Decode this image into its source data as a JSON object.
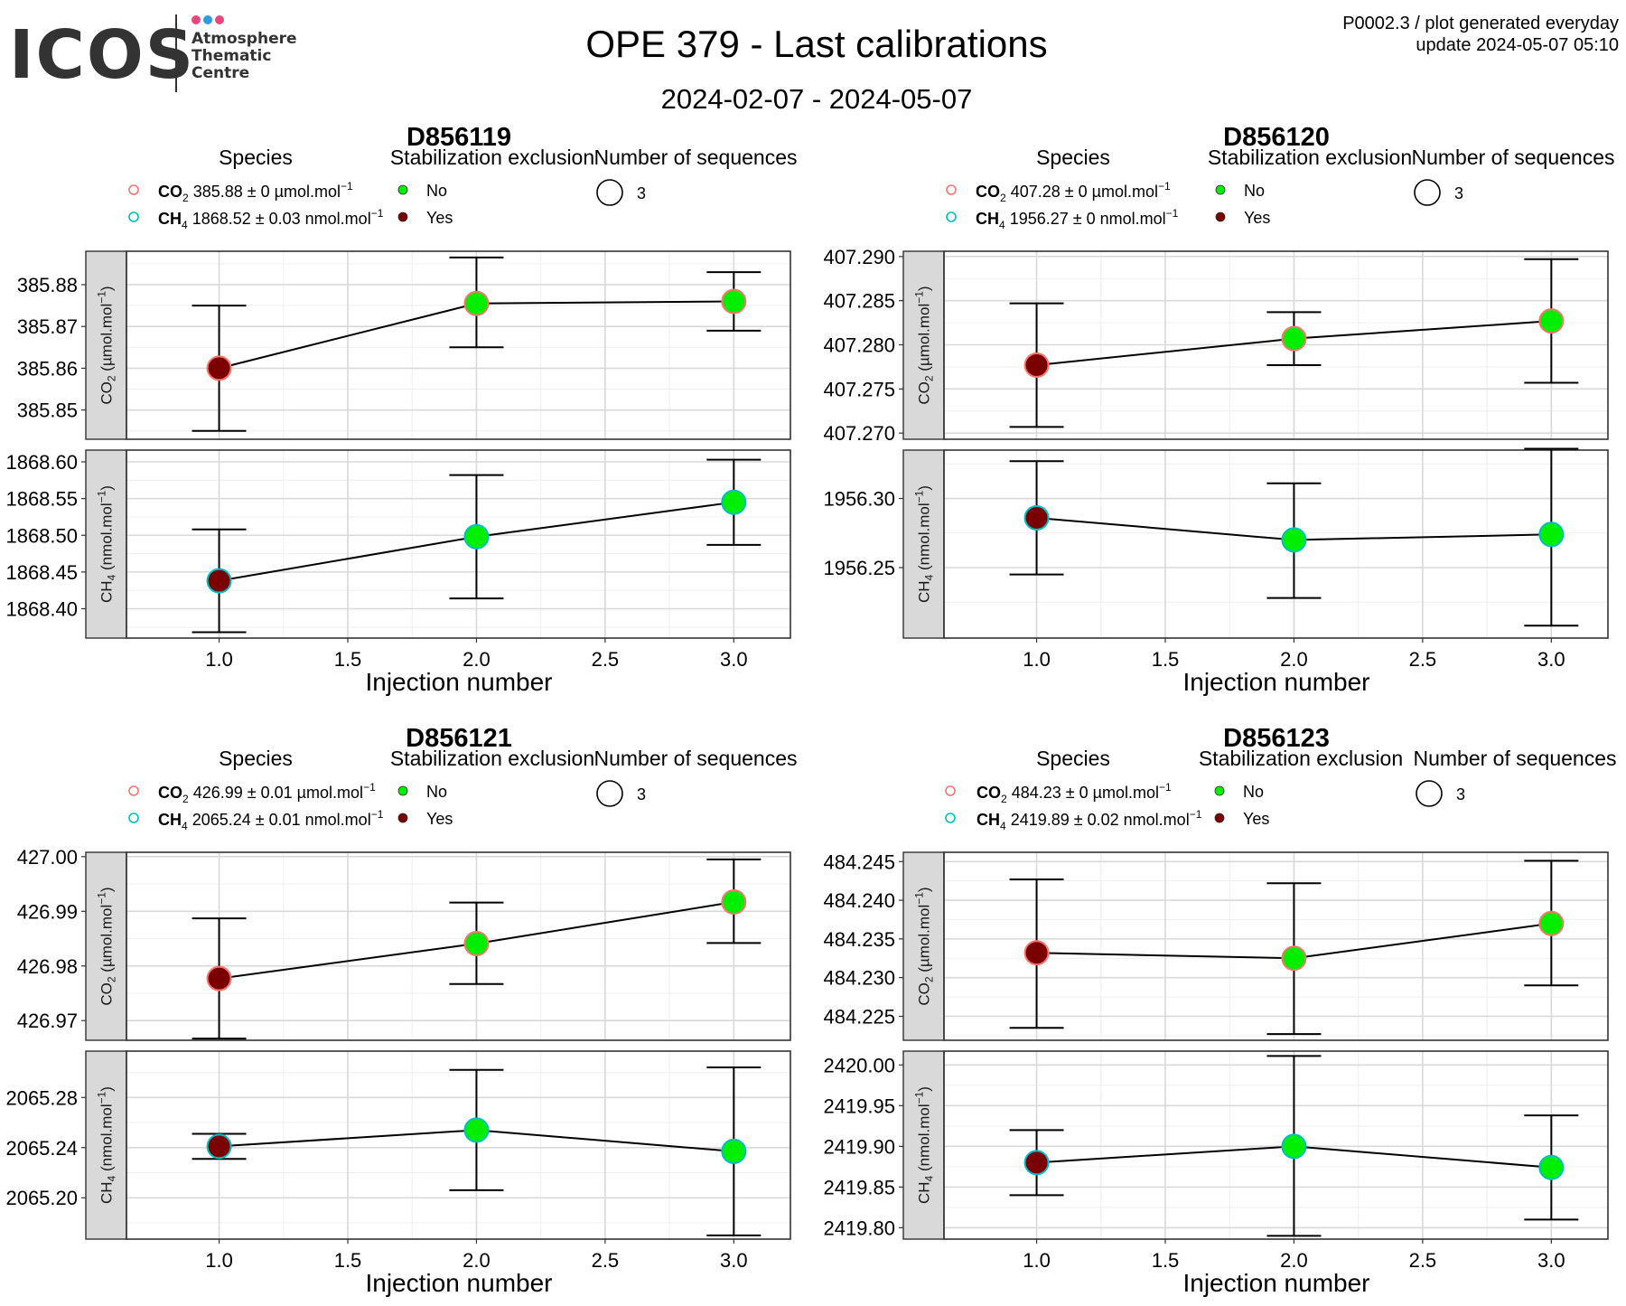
{
  "header": {
    "logo_text": "ICOS",
    "logo_subtitle": [
      "Atmosphere",
      "Thematic",
      "Centre"
    ],
    "logo_dot_colors": [
      "#e8467c",
      "#2c9be0",
      "#e8467c"
    ],
    "title": "OPE 379 - Last calibrations",
    "date_range": "2024-02-07 - 2024-05-07",
    "product_line": "P0002.3 / plot generated everyday",
    "update_line": "update  2024-05-07 05:10"
  },
  "legend_titles": {
    "species": "Species",
    "stabilization": "Stabilization exclusion",
    "sequences": "Number of sequences"
  },
  "legend_stabilization_labels": [
    "No",
    "Yes"
  ],
  "colors": {
    "co2_outline": "#f8766d",
    "ch4_outline": "#00bfc4",
    "no_fill": "#00ee00",
    "yes_fill": "#7a0000",
    "strip_bg": "#d9d9d9",
    "grid_major": "#d9d9d9",
    "grid_minor": "#efefef"
  },
  "chart_data": [
    {
      "type": "scatter",
      "title": "D856119",
      "xlabel": "Injection number",
      "xlim": [
        0.64,
        3.22
      ],
      "x_ticks": [
        "1.0",
        "1.5",
        "2.0",
        "2.5",
        "3.0"
      ],
      "sequences": "3",
      "species_legend": [
        {
          "species": "CO2",
          "value": "385.88",
          "pm": "0",
          "unit": "µmol.mol"
        },
        {
          "species": "CH4",
          "value": "1868.52",
          "pm": "0.03",
          "unit": "nmol.mol"
        }
      ],
      "panels": [
        {
          "species": "CO2",
          "ylabel": "CO2 (µmol.mol-1)",
          "unit": "µmol.mol",
          "ylim": [
            385.843,
            385.888
          ],
          "y_ticks": [
            "385.85",
            "385.86",
            "385.87",
            "385.88"
          ],
          "x": [
            1,
            2,
            3
          ],
          "y": [
            385.86,
            385.8755,
            385.876
          ],
          "err_low": [
            385.845,
            385.865,
            385.869
          ],
          "err_high": [
            385.875,
            385.8865,
            385.883
          ],
          "excluded": [
            "Yes",
            "No",
            "No"
          ]
        },
        {
          "species": "CH4",
          "ylabel": "CH4 (nmol.mol-1)",
          "unit": "nmol.mol",
          "ylim": [
            1868.36,
            1868.616
          ],
          "y_ticks": [
            "1868.40",
            "1868.45",
            "1868.50",
            "1868.55",
            "1868.60"
          ],
          "x": [
            1,
            2,
            3
          ],
          "y": [
            1868.438,
            1868.498,
            1868.545
          ],
          "err_low": [
            1868.368,
            1868.414,
            1868.487
          ],
          "err_high": [
            1868.508,
            1868.582,
            1868.603
          ],
          "excluded": [
            "Yes",
            "No",
            "No"
          ]
        }
      ]
    },
    {
      "type": "scatter",
      "title": "D856120",
      "xlabel": "Injection number",
      "xlim": [
        0.64,
        3.22
      ],
      "x_ticks": [
        "1.0",
        "1.5",
        "2.0",
        "2.5",
        "3.0"
      ],
      "sequences": "3",
      "species_legend": [
        {
          "species": "CO2",
          "value": "407.28",
          "pm": "0",
          "unit": "µmol.mol"
        },
        {
          "species": "CH4",
          "value": "1956.27",
          "pm": "0",
          "unit": "nmol.mol"
        }
      ],
      "panels": [
        {
          "species": "CO2",
          "ylabel": "CO2 (µmol.mol-1)",
          "unit": "µmol.mol",
          "ylim": [
            407.2693,
            407.2906
          ],
          "y_ticks": [
            "407.270",
            "407.275",
            "407.280",
            "407.285",
            "407.290"
          ],
          "x": [
            1,
            2,
            3
          ],
          "y": [
            407.2777,
            407.2807,
            407.2827
          ],
          "err_low": [
            407.2707,
            407.2777,
            407.2757
          ],
          "err_high": [
            407.2847,
            407.2837,
            407.2897
          ],
          "excluded": [
            "Yes",
            "No",
            "No"
          ]
        },
        {
          "species": "CH4",
          "ylabel": "CH4 (nmol.mol-1)",
          "unit": "nmol.mol",
          "ylim": [
            1956.199,
            1956.335
          ],
          "y_ticks": [
            "1956.25",
            "1956.30"
          ],
          "x": [
            1,
            2,
            3
          ],
          "y": [
            1956.286,
            1956.27,
            1956.274
          ],
          "err_low": [
            1956.245,
            1956.228,
            1956.208
          ],
          "err_high": [
            1956.327,
            1956.311,
            1956.336
          ],
          "excluded": [
            "Yes",
            "No",
            "No"
          ]
        }
      ]
    },
    {
      "type": "scatter",
      "title": "D856121",
      "xlabel": "Injection number",
      "xlim": [
        0.64,
        3.22
      ],
      "x_ticks": [
        "1.0",
        "1.5",
        "2.0",
        "2.5",
        "3.0"
      ],
      "sequences": "3",
      "species_legend": [
        {
          "species": "CO2",
          "value": "426.99",
          "pm": "0.01",
          "unit": "µmol.mol"
        },
        {
          "species": "CH4",
          "value": "2065.24",
          "pm": "0.01",
          "unit": "nmol.mol"
        }
      ],
      "panels": [
        {
          "species": "CO2",
          "ylabel": "CO2 (µmol.mol-1)",
          "unit": "µmol.mol",
          "ylim": [
            426.9664,
            427.0008
          ],
          "y_ticks": [
            "426.97",
            "426.98",
            "426.99",
            "427.00"
          ],
          "x": [
            1,
            2,
            3
          ],
          "y": [
            426.9777,
            426.9841,
            426.9917
          ],
          "err_low": [
            426.9667,
            426.9767,
            426.9842
          ],
          "err_high": [
            426.9887,
            426.9916,
            426.9995
          ],
          "excluded": [
            "Yes",
            "No",
            "No"
          ]
        },
        {
          "species": "CH4",
          "ylabel": "CH4 (nmol.mol-1)",
          "unit": "nmol.mol",
          "ylim": [
            2065.167,
            2065.317
          ],
          "y_ticks": [
            "2065.20",
            "2065.24",
            "2065.28"
          ],
          "x": [
            1,
            2,
            3
          ],
          "y": [
            2065.241,
            2065.254,
            2065.237
          ],
          "err_low": [
            2065.231,
            2065.206,
            2065.17
          ],
          "err_high": [
            2065.251,
            2065.302,
            2065.304
          ],
          "excluded": [
            "Yes",
            "No",
            "No"
          ]
        }
      ]
    },
    {
      "type": "scatter",
      "title": "D856123",
      "xlabel": "Injection number",
      "xlim": [
        0.64,
        3.22
      ],
      "x_ticks": [
        "1.0",
        "1.5",
        "2.0",
        "2.5",
        "3.0"
      ],
      "sequences": "3",
      "species_legend": [
        {
          "species": "CO2",
          "value": "484.23",
          "pm": "0",
          "unit": "µmol.mol"
        },
        {
          "species": "CH4",
          "value": "2419.89",
          "pm": "0.02",
          "unit": "nmol.mol"
        }
      ],
      "panels": [
        {
          "species": "CO2",
          "ylabel": "CO2 (µmol.mol-1)",
          "unit": "µmol.mol",
          "ylim": [
            484.2219,
            484.2462
          ],
          "y_ticks": [
            "484.225",
            "484.230",
            "484.235",
            "484.240",
            "484.245"
          ],
          "x": [
            1,
            2,
            3
          ],
          "y": [
            484.2332,
            484.2325,
            484.237
          ],
          "err_low": [
            484.2235,
            484.2227,
            484.229
          ],
          "err_high": [
            484.2427,
            484.2422,
            484.2451
          ],
          "excluded": [
            "Yes",
            "No",
            "No"
          ]
        },
        {
          "species": "CH4",
          "ylabel": "CH4 (nmol.mol-1)",
          "unit": "nmol.mol",
          "ylim": [
            2419.786,
            2420.017
          ],
          "y_ticks": [
            "2419.80",
            "2419.85",
            "2419.90",
            "2419.95",
            "2420.00"
          ],
          "x": [
            1,
            2,
            3
          ],
          "y": [
            2419.88,
            2419.9,
            2419.874
          ],
          "err_low": [
            2419.84,
            2419.79,
            2419.81
          ],
          "err_high": [
            2419.92,
            2420.011,
            2419.938
          ],
          "excluded": [
            "Yes",
            "No",
            "No"
          ]
        }
      ]
    }
  ]
}
